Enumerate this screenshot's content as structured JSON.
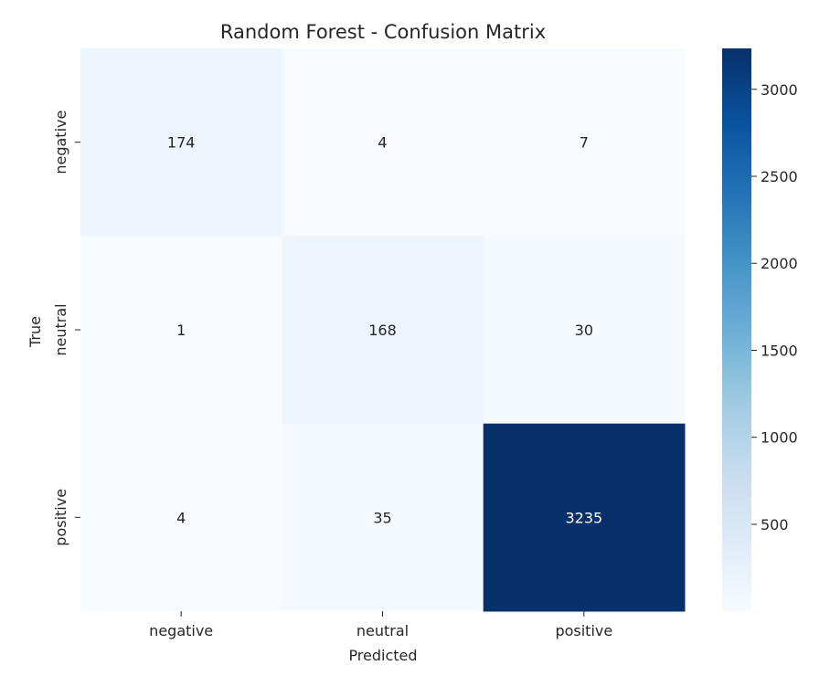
{
  "chart_data": {
    "type": "heatmap",
    "title": "Random Forest - Confusion Matrix",
    "xlabel": "Predicted",
    "ylabel": "True",
    "x_categories": [
      "negative",
      "neutral",
      "positive"
    ],
    "y_categories": [
      "negative",
      "neutral",
      "positive"
    ],
    "values": [
      [
        174,
        4,
        7
      ],
      [
        1,
        168,
        30
      ],
      [
        4,
        35,
        3235
      ]
    ],
    "colormap": "Blues",
    "color_low": "#f7fbff",
    "color_high": "#08306b",
    "colorbar": {
      "range": [
        1,
        3235
      ],
      "ticks": [
        500,
        1000,
        1500,
        2000,
        2500,
        3000
      ],
      "tick_labels": [
        "500",
        "1000",
        "1500",
        "2000",
        "2500",
        "3000"
      ]
    }
  }
}
